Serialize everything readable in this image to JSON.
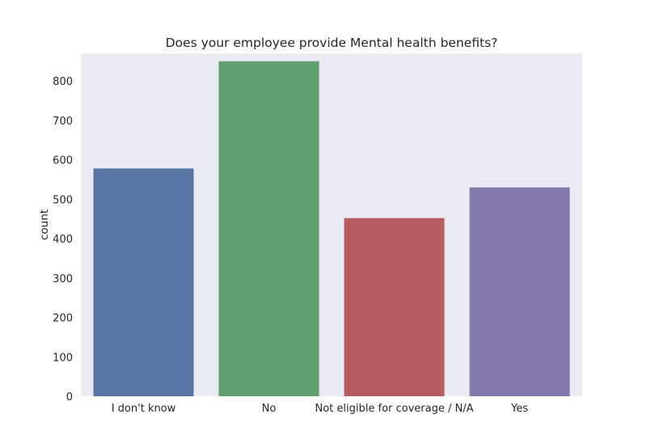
{
  "chart_data": {
    "type": "bar",
    "title": "Does your employee provide Mental health benefits?",
    "xlabel": "",
    "ylabel": "count",
    "categories": [
      "I don't know",
      "No",
      "Not eligible for coverage / N/A",
      "Yes"
    ],
    "values": [
      578,
      850,
      452,
      530
    ],
    "colors": [
      "#5875a4",
      "#5f9e6e",
      "#b55d60",
      "#857aab"
    ],
    "ylim": [
      0,
      870
    ],
    "yticks": [
      0,
      100,
      200,
      300,
      400,
      500,
      600,
      700,
      800
    ],
    "grid": false,
    "background": "#eaeaf2"
  }
}
